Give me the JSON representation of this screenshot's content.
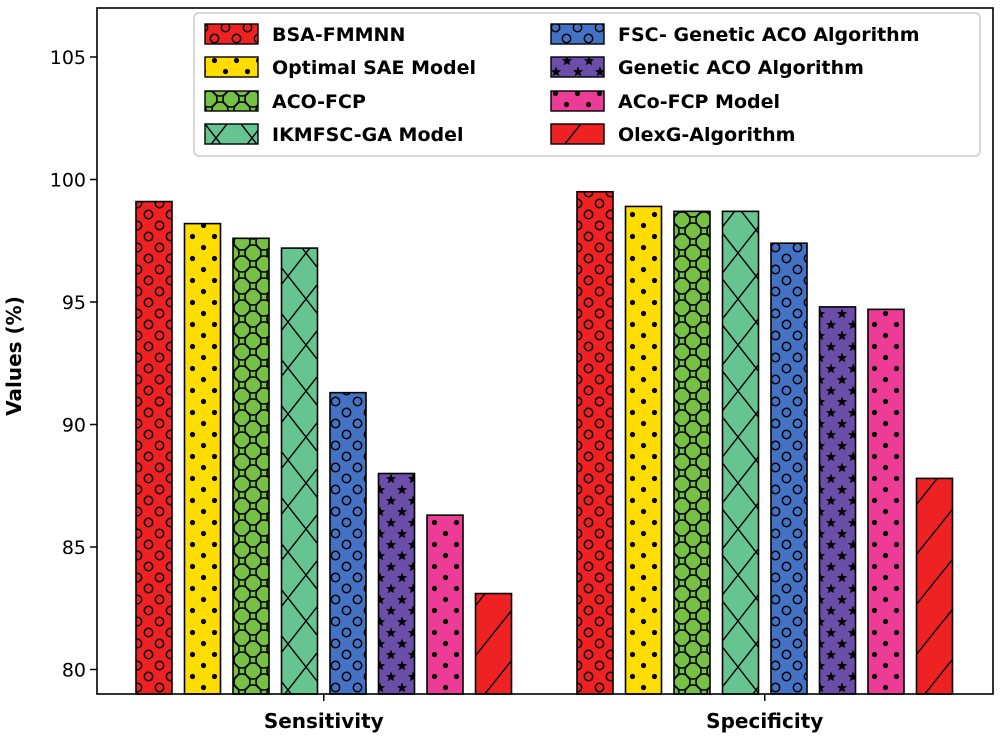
{
  "chart_data": {
    "type": "bar",
    "title": "",
    "xlabel": "",
    "ylabel": "Values (%)",
    "ylim": [
      79,
      107
    ],
    "yticks": [
      80,
      85,
      90,
      95,
      100,
      105
    ],
    "grid": false,
    "legend_position": "top-right",
    "categories": [
      "Sensitivity",
      "Specificity"
    ],
    "series": [
      {
        "name": "BSA-FMMNN",
        "values": [
          99.1,
          99.5
        ],
        "color": "#ee2222",
        "hatch": "rings"
      },
      {
        "name": "Optimal SAE Model",
        "values": [
          98.2,
          98.9
        ],
        "color": "#ffdd00",
        "hatch": "dots"
      },
      {
        "name": "ACO-FCP",
        "values": [
          97.6,
          98.7
        ],
        "color": "#77c046",
        "hatch": "big-rings"
      },
      {
        "name": "IKMFSC-GA Model",
        "values": [
          97.2,
          98.7
        ],
        "color": "#66c491",
        "hatch": "cross"
      },
      {
        "name": "FSC- Genetic ACO Algorithm",
        "values": [
          91.3,
          97.4
        ],
        "color": "#4472c4",
        "hatch": "rings"
      },
      {
        "name": "Genetic ACO Algorithm",
        "values": [
          88.0,
          94.8
        ],
        "color": "#6a4ea8",
        "hatch": "stars"
      },
      {
        "name": "ACo-FCP Model",
        "values": [
          86.3,
          94.7
        ],
        "color": "#ec3c96",
        "hatch": "dots"
      },
      {
        "name": "OlexG-Algorithm",
        "values": [
          83.1,
          87.8
        ],
        "color": "#ee2222",
        "hatch": "slash"
      }
    ]
  }
}
